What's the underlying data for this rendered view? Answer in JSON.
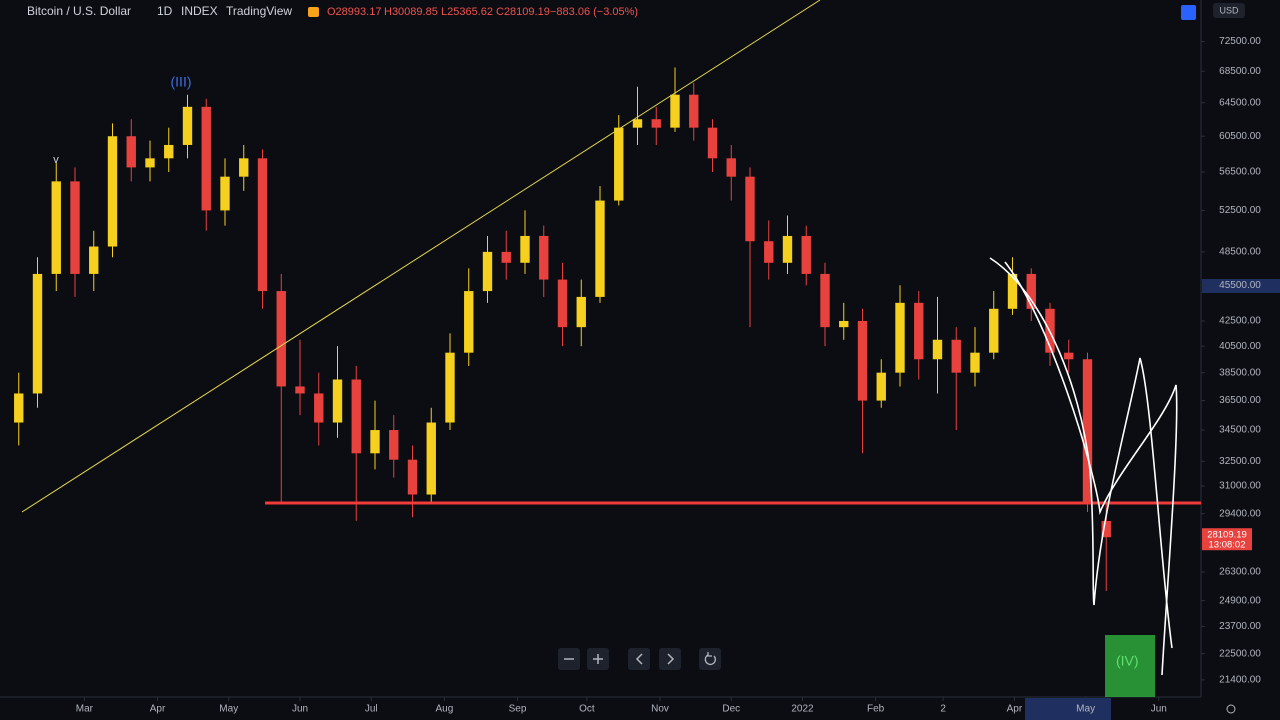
{
  "header": {
    "symbol": "Bitcoin / U.S. Dollar",
    "interval": "1D",
    "exchange": "INDEX",
    "source": "TradingView",
    "ohlc": [
      "O28993.17",
      "H30089.85",
      "L25365.62",
      "C28109.19"
    ],
    "change": "−883.06 (−3.05%)",
    "currency": "USD"
  },
  "annotations": {
    "wave_3": "(III)",
    "wave_v": "v",
    "wave_4": "(IV)",
    "countdown": "13:08:02"
  },
  "chart_data": {
    "type": "candlestick",
    "up_color": "#f5d01e",
    "down_color": "#e8423f",
    "open": [
      35000,
      37000,
      46500,
      55500,
      46500,
      49000,
      60500,
      57000,
      58000,
      59500,
      64000,
      52500,
      56000,
      58000,
      45000,
      37500,
      37000,
      35000,
      38000,
      33000,
      34500,
      32600,
      30500,
      35000,
      40000,
      45000,
      48500,
      47500,
      50000,
      46000,
      42000,
      44500,
      53500,
      61500,
      62500,
      61500,
      65500,
      61500,
      58000,
      56000,
      49500,
      47500,
      50000,
      46500,
      42000,
      42500,
      36500,
      38500,
      44000,
      39500,
      41000,
      38500,
      40000,
      43500,
      46500,
      43500,
      40000,
      39500,
      28993.17
    ],
    "high": [
      38500,
      48000,
      57500,
      57000,
      50500,
      62000,
      62500,
      60000,
      61500,
      65500,
      65000,
      58000,
      59500,
      59000,
      46500,
      41000,
      38500,
      40500,
      39000,
      36500,
      35500,
      33500,
      36000,
      41500,
      47000,
      50000,
      50500,
      52500,
      51000,
      47500,
      46000,
      55000,
      63000,
      66500,
      64000,
      69000,
      67000,
      62500,
      59500,
      57000,
      51500,
      52000,
      51000,
      47500,
      44000,
      43500,
      39500,
      45500,
      45000,
      44500,
      42000,
      42000,
      45000,
      48000,
      47000,
      44000,
      41000,
      40000,
      30089.85
    ],
    "low": [
      33500,
      36000,
      45000,
      44500,
      45000,
      48000,
      55500,
      55500,
      56500,
      58000,
      50500,
      51000,
      54500,
      43500,
      30000,
      35500,
      33500,
      34000,
      29000,
      32000,
      31500,
      29200,
      30000,
      34500,
      39000,
      44000,
      46000,
      46500,
      44500,
      40500,
      40500,
      44000,
      53000,
      59500,
      59500,
      61000,
      60000,
      56500,
      53500,
      42000,
      46000,
      46500,
      45500,
      40500,
      41000,
      33000,
      36000,
      37500,
      38000,
      37000,
      34500,
      37500,
      39500,
      43000,
      42500,
      39000,
      38500,
      29500,
      25365.62
    ],
    "close": [
      37000,
      46500,
      55500,
      46500,
      49000,
      60500,
      57000,
      58000,
      59500,
      64000,
      52500,
      56000,
      58000,
      45000,
      37500,
      37000,
      35000,
      38000,
      33000,
      34500,
      32600,
      30500,
      35000,
      40000,
      45000,
      48500,
      47500,
      50000,
      46000,
      42000,
      44500,
      53500,
      61500,
      62500,
      61500,
      65500,
      61500,
      58000,
      56000,
      49500,
      47500,
      50000,
      46500,
      42000,
      42500,
      36500,
      38500,
      44000,
      39500,
      41000,
      38500,
      40000,
      43500,
      46500,
      43500,
      40000,
      39500,
      30000,
      28109.19
    ],
    "xlim": [
      -1,
      63
    ],
    "xticks": [
      {
        "value": 3.5,
        "label": "Mar"
      },
      {
        "value": 7.4,
        "label": "Apr"
      },
      {
        "value": 11.2,
        "label": "May"
      },
      {
        "value": 15,
        "label": "Jun"
      },
      {
        "value": 18.8,
        "label": "Jul"
      },
      {
        "value": 22.7,
        "label": "Aug"
      },
      {
        "value": 26.6,
        "label": "Sep"
      },
      {
        "value": 30.3,
        "label": "Oct"
      },
      {
        "value": 34.2,
        "label": "Nov"
      },
      {
        "value": 38,
        "label": "Dec"
      },
      {
        "value": 41.8,
        "label": "2022"
      },
      {
        "value": 45.7,
        "label": "Feb"
      },
      {
        "value": 49.3,
        "label": "2"
      },
      {
        "value": 53.1,
        "label": "Apr"
      },
      {
        "value": 56.9,
        "label": "May"
      },
      {
        "value": 60.8,
        "label": "Jun"
      }
    ],
    "ylim": [
      20750,
      78500
    ],
    "log_scale": true,
    "grid": false,
    "yticks": [
      {
        "value": 72500,
        "label": "72500.00"
      },
      {
        "value": 68500,
        "label": "68500.00"
      },
      {
        "value": 64500,
        "label": "64500.00"
      },
      {
        "value": 60500,
        "label": "60500.00"
      },
      {
        "value": 56500,
        "label": "56500.00"
      },
      {
        "value": 52500,
        "label": "52500.00"
      },
      {
        "value": 48500,
        "label": "48500.00"
      },
      {
        "value": 45500,
        "label": "45500.00"
      },
      {
        "value": 42500,
        "label": "42500.00"
      },
      {
        "value": 40500,
        "label": "40500.00"
      },
      {
        "value": 38500,
        "label": "38500.00"
      },
      {
        "value": 36500,
        "label": "36500.00"
      },
      {
        "value": 34500,
        "label": "34500.00"
      },
      {
        "value": 32500,
        "label": "32500.00"
      },
      {
        "value": 31000,
        "label": "31000.00"
      },
      {
        "value": 29400,
        "label": "29400.00"
      },
      {
        "value": 26300,
        "label": "26300.00"
      },
      {
        "value": 24900,
        "label": "24900.00"
      },
      {
        "value": 23700,
        "label": "23700.00"
      },
      {
        "value": 22500,
        "label": "22500.00"
      },
      {
        "value": 21400,
        "label": "21400.00"
      }
    ]
  }
}
